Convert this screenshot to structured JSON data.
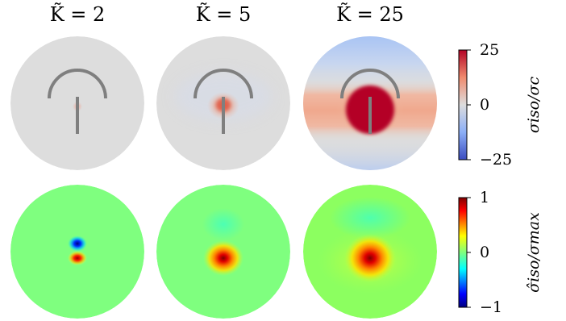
{
  "chart_data": {
    "type": "heatmap",
    "description_free": true,
    "columns": [
      {
        "title": "K̃ = 2",
        "K": 2
      },
      {
        "title": "K̃ = 5",
        "K": 5
      },
      {
        "title": "K̃ = 25",
        "K": 25
      }
    ],
    "rows": [
      {
        "colorbar_label": "σiso/σc",
        "colormap": "coolwarm",
        "vmin": -25,
        "vmax": 25,
        "ticks": [
          "25",
          "0",
          "−25"
        ],
        "overlay": "arc-and-stem",
        "overlay_color": "#7f7f7f",
        "background_color": "#dddddd"
      },
      {
        "colorbar_label": "σ̂iso/σmax",
        "colormap": "jet",
        "vmin": -1,
        "vmax": 1,
        "ticks": [
          "1",
          "0",
          "−1"
        ],
        "overlay": "none"
      }
    ],
    "colors": {
      "coolwarm_low": "#3b4cc0",
      "coolwarm_mid": "#dddddd",
      "coolwarm_high": "#b40426",
      "jet_low": "#00007f",
      "jet_mid": "#7fff7f",
      "jet_high": "#7f0000"
    }
  }
}
